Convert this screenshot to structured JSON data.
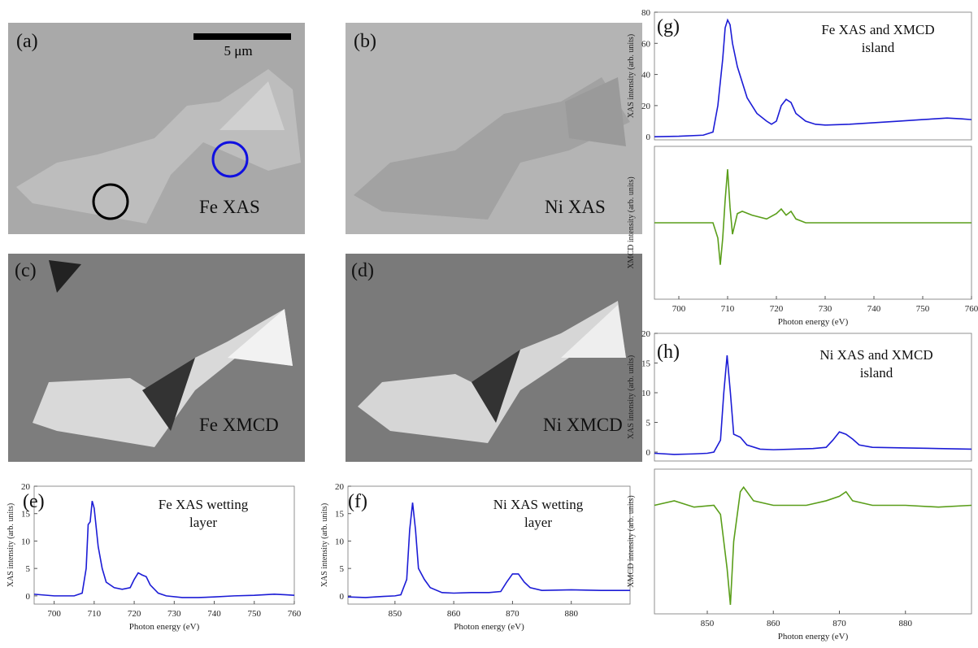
{
  "panels": [
    {
      "label": "(a)",
      "caption": "Fe XAS",
      "scale_bar": "5 μm"
    },
    {
      "label": "(b)",
      "caption": "Ni XAS"
    },
    {
      "label": "(c)",
      "caption": "Fe XMCD"
    },
    {
      "label": "(d)",
      "caption": "Ni XMCD"
    }
  ],
  "chart_data": [
    {
      "type": "line",
      "label": "(e)",
      "title": [
        "Fe XAS wetting",
        "layer"
      ],
      "color": "#1c1cd6",
      "xlabel": "Photon energy (eV)",
      "ylabel": "XAS intensity (arb. units)",
      "xlim": [
        695,
        760
      ],
      "xticks": [
        700,
        710,
        720,
        730,
        740,
        750,
        760
      ],
      "ylim": [
        -1.5,
        20
      ],
      "yticks": [
        0,
        5,
        10,
        15,
        20
      ],
      "x": [
        695,
        700,
        705,
        707,
        708,
        708.5,
        709,
        709.5,
        710,
        711,
        712,
        713,
        715,
        717,
        719,
        720,
        721,
        722,
        723,
        724,
        726,
        728,
        732,
        736,
        740,
        745,
        750,
        755,
        758,
        760
      ],
      "values": [
        0.3,
        0,
        0,
        0.5,
        5,
        13,
        13.5,
        17.3,
        16,
        9,
        5,
        2.5,
        1.5,
        1.2,
        1.5,
        3,
        4.2,
        3.8,
        3.5,
        2,
        0.5,
        0,
        -0.3,
        -0.3,
        -0.2,
        0,
        0.1,
        0.3,
        0.2,
        0.1
      ]
    },
    {
      "type": "line",
      "label": "(f)",
      "title": [
        "Ni XAS wetting",
        "layer"
      ],
      "color": "#1c1cd6",
      "xlabel": "Photon energy (eV)",
      "ylabel": "XAS intensity (arb. units)",
      "xlim": [
        842,
        890
      ],
      "xticks": [
        850,
        860,
        870,
        880
      ],
      "ylim": [
        -1.5,
        20
      ],
      "yticks": [
        0,
        5,
        10,
        15,
        20
      ],
      "x": [
        842,
        845,
        848,
        850,
        851,
        852,
        852.5,
        853,
        853.5,
        854,
        855,
        856,
        858,
        860,
        863,
        866,
        868,
        869,
        870,
        871,
        872,
        873,
        875,
        880,
        885,
        890
      ],
      "values": [
        -0.2,
        -0.3,
        -0.1,
        0,
        0.2,
        3,
        12,
        17,
        12,
        5,
        3,
        1.5,
        0.6,
        0.5,
        0.6,
        0.6,
        0.8,
        2.5,
        4,
        4,
        2.5,
        1.5,
        1,
        1.1,
        1,
        1
      ]
    },
    {
      "type": "line",
      "label": "(g)",
      "title": [
        "Fe XAS and XMCD",
        "island"
      ],
      "color": "#1c1cd6",
      "ylabel": "XAS intensity (arb. units)",
      "xlim": [
        695,
        760
      ],
      "ylim": [
        -2,
        80
      ],
      "yticks": [
        0,
        20,
        40,
        60,
        80
      ],
      "x": [
        695,
        700,
        705,
        707,
        708,
        709,
        709.5,
        710,
        710.5,
        711,
        712,
        714,
        716,
        718,
        719,
        720,
        721,
        722,
        723,
        724,
        726,
        728,
        730,
        735,
        740,
        745,
        750,
        755,
        758,
        760
      ],
      "values": [
        0,
        0.3,
        1,
        3,
        20,
        50,
        70,
        75,
        72,
        60,
        45,
        25,
        15,
        10,
        8,
        10,
        20,
        24,
        22,
        15,
        10,
        8,
        7.5,
        8,
        9,
        10,
        11,
        12,
        11.5,
        11
      ]
    },
    {
      "type": "line",
      "color": "#5a9e1a",
      "xlabel": "Photon energy (eV)",
      "ylabel": "XMCD intensity (arb. units)",
      "xlim": [
        695,
        760
      ],
      "xticks": [
        700,
        710,
        720,
        730,
        740,
        750,
        760
      ],
      "ylim": [
        -1,
        1
      ],
      "x": [
        695,
        705,
        707,
        708,
        708.5,
        709,
        709.5,
        710,
        710.5,
        711,
        712,
        713,
        715,
        718,
        720,
        721,
        722,
        723,
        724,
        726,
        730,
        740,
        750,
        760
      ],
      "values": [
        0,
        0,
        0,
        -0.2,
        -0.55,
        -0.2,
        0.3,
        0.7,
        0.2,
        -0.15,
        0.12,
        0.15,
        0.1,
        0.05,
        0.12,
        0.18,
        0.1,
        0.15,
        0.05,
        0,
        0,
        0,
        0,
        0
      ]
    },
    {
      "type": "line",
      "label": "(h)",
      "title": [
        "Ni XAS and XMCD",
        "island"
      ],
      "color": "#1c1cd6",
      "ylabel": "XAS intensity (arb. units)",
      "xlim": [
        842,
        890
      ],
      "ylim": [
        -1.5,
        20
      ],
      "yticks": [
        0,
        5,
        10,
        15,
        20
      ],
      "x": [
        842,
        845,
        848,
        850,
        851,
        852,
        852.5,
        853,
        853.5,
        854,
        855,
        856,
        858,
        860,
        863,
        866,
        868,
        869,
        870,
        871,
        872,
        873,
        875,
        880,
        885,
        890
      ],
      "values": [
        -0.2,
        -0.4,
        -0.3,
        -0.2,
        0,
        2,
        10,
        16.3,
        10,
        3,
        2.5,
        1.2,
        0.5,
        0.4,
        0.5,
        0.6,
        0.8,
        2,
        3.4,
        3,
        2.2,
        1.2,
        0.8,
        0.7,
        0.6,
        0.5
      ]
    },
    {
      "type": "line",
      "color": "#5a9e1a",
      "xlabel": "Photon energy (eV)",
      "ylabel": "XMCD intensity (arb. units)",
      "xlim": [
        842,
        890
      ],
      "xticks": [
        850,
        860,
        870,
        880
      ],
      "ylim": [
        -1.2,
        0.4
      ],
      "x": [
        842,
        845,
        848,
        851,
        852,
        853,
        853.5,
        854,
        855,
        855.5,
        857,
        860,
        865,
        868,
        870,
        871,
        872,
        875,
        880,
        885,
        890
      ],
      "values": [
        0,
        0.05,
        -0.02,
        0,
        -0.1,
        -0.7,
        -1.1,
        -0.4,
        0.15,
        0.2,
        0.05,
        0,
        0,
        0.05,
        0.1,
        0.15,
        0.05,
        0,
        0,
        -0.02,
        0
      ]
    }
  ]
}
